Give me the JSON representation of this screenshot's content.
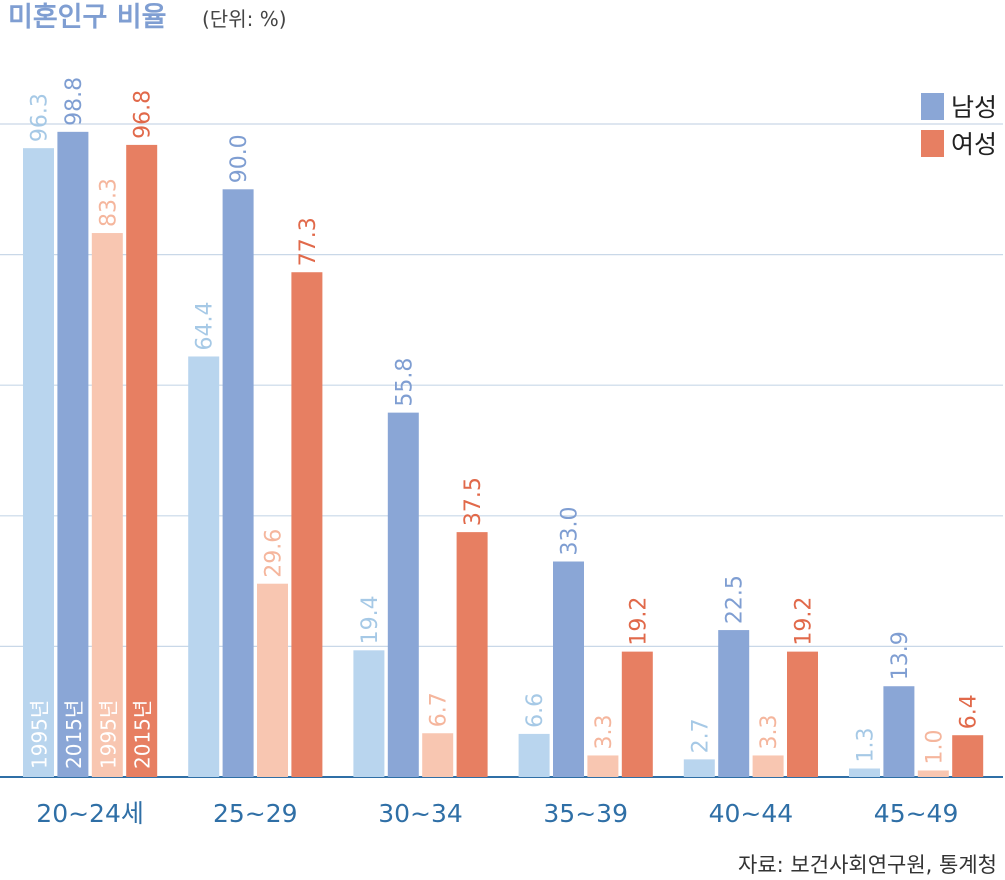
{
  "chart_data": {
    "type": "bar",
    "title": "미혼인구 비율",
    "unit": "(단위: %)",
    "source": "자료: 보건사회연구원, 통계청",
    "categories": [
      "20~24세",
      "25~29",
      "30~34",
      "35~39",
      "40~44",
      "45~49"
    ],
    "series": [
      {
        "year": "1995년",
        "group": "남성",
        "color": "#b9d5ee",
        "label_color": "#a6c9e6",
        "values": [
          96.3,
          64.4,
          19.4,
          6.6,
          2.7,
          1.3
        ]
      },
      {
        "year": "2015년",
        "group": "남성",
        "color": "#8aa6d6",
        "label_color": "#7f9ed2",
        "values": [
          98.8,
          90.0,
          55.8,
          33.0,
          22.5,
          13.9
        ]
      },
      {
        "year": "1995년",
        "group": "여성",
        "color": "#f8c6b1",
        "label_color": "#f5b69d",
        "values": [
          83.3,
          29.6,
          6.7,
          3.3,
          3.3,
          1.0
        ]
      },
      {
        "year": "2015년",
        "group": "여성",
        "color": "#e77f62",
        "label_color": "#e1694a",
        "values": [
          96.8,
          77.3,
          37.5,
          19.2,
          19.2,
          6.4
        ]
      }
    ],
    "value_labels": [
      [
        "96.3",
        "64.4",
        "19.4",
        "6.6",
        "2.7",
        "1.3"
      ],
      [
        "98.8",
        "90.0",
        "55.8",
        "33.0",
        "22.5",
        "13.9"
      ],
      [
        "83.3",
        "29.6",
        "6.7",
        "3.3",
        "3.3",
        "1.0"
      ],
      [
        "96.8",
        "77.3",
        "37.5",
        "19.2",
        "19.2",
        "6.4"
      ]
    ],
    "legend": [
      {
        "label": "남성",
        "color": "#8aa6d6"
      },
      {
        "label": "여성",
        "color": "#e77f62"
      }
    ],
    "legend_position": "top-right",
    "ylim": [
      0,
      100
    ],
    "grid": true,
    "title_color": "#7f9ed2",
    "axis_color": "#2f6fa6",
    "grid_color": "#c9d8e8"
  }
}
